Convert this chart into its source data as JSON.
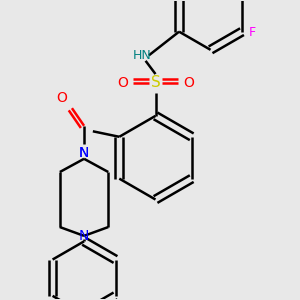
{
  "background_color": "#e8e8e8",
  "bond_color": "#000000",
  "atom_colors": {
    "N": "#0000ff",
    "O": "#ff0000",
    "S": "#cccc00",
    "F": "#ff00ff",
    "NH": "#008080"
  },
  "lw": 1.8,
  "dbo": 0.018
}
